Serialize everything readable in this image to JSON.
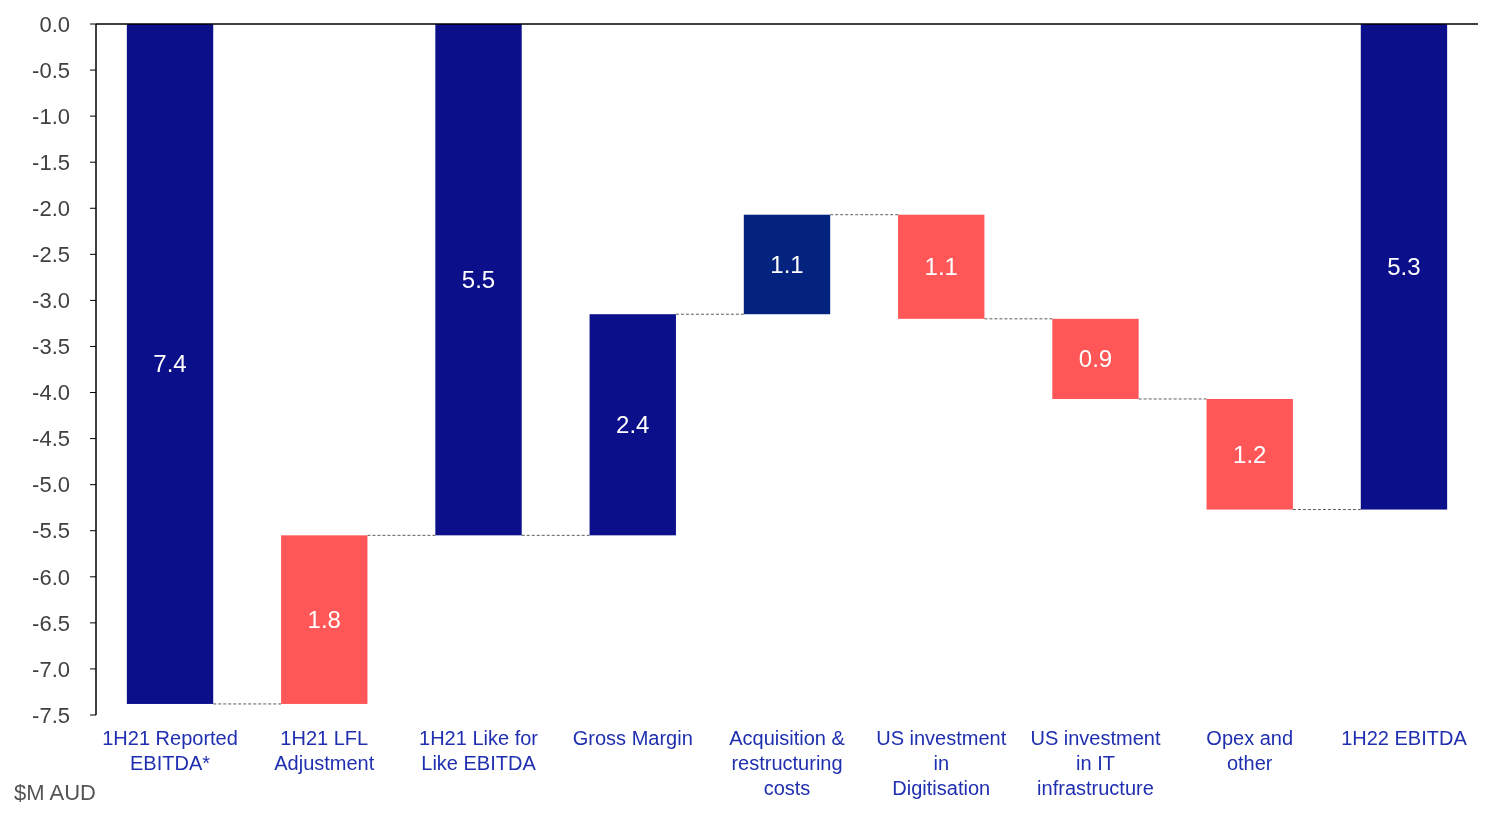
{
  "chart_data": {
    "type": "bar",
    "categories": [
      "1H21 Reported EBITDA*",
      "1H21 LFL Adjustment",
      "1H21 Like for Like EBITDA",
      "Gross Margin",
      "Acquisition & restructuring costs",
      "US investment in Digitisation",
      "US investment in IT infrastructure",
      "Opex and other",
      "1H22 EBITDA"
    ],
    "values": [
      -7.38,
      1.83,
      -5.55,
      2.4,
      1.08,
      -1.13,
      -0.87,
      -1.2,
      -5.27
    ],
    "base": [
      0,
      -7.38,
      0,
      -5.55,
      -3.15,
      -2.07,
      -3.2,
      -4.07,
      0
    ],
    "colors": [
      "#0b0f8a",
      "#ff5757",
      "#0b0f8a",
      "#0b0f8a",
      "#03237f",
      "#ff5757",
      "#ff5757",
      "#ff5757",
      "#0b0f8a"
    ],
    "value_labels": [
      "7.4",
      "1.8",
      "5.5",
      "2.4",
      "1.1",
      "1.1",
      "0.9",
      "1.2",
      "5.3"
    ],
    "ylim": [
      -7.5,
      0
    ],
    "yticks": [
      {
        "value": 0,
        "label": "0.0"
      },
      {
        "value": -0.5,
        "label": "-0.5"
      },
      {
        "value": -1,
        "label": "-1.0"
      },
      {
        "value": -1.5,
        "label": "-1.5"
      },
      {
        "value": -2,
        "label": "-2.0"
      },
      {
        "value": -2.5,
        "label": "-2.5"
      },
      {
        "value": -3,
        "label": "-3.0"
      },
      {
        "value": -3.5,
        "label": "-3.5"
      },
      {
        "value": -4,
        "label": "-4.0"
      },
      {
        "value": -4.5,
        "label": "-4.5"
      },
      {
        "value": -5,
        "label": "-5.0"
      },
      {
        "value": -5.5,
        "label": "-5.5"
      },
      {
        "value": -6,
        "label": "-6.0"
      },
      {
        "value": -6.5,
        "label": "-6.5"
      },
      {
        "value": -7,
        "label": "-7.0"
      },
      {
        "value": -7.5,
        "label": "-7.5"
      }
    ],
    "annotations": [
      "$M AUD"
    ]
  }
}
